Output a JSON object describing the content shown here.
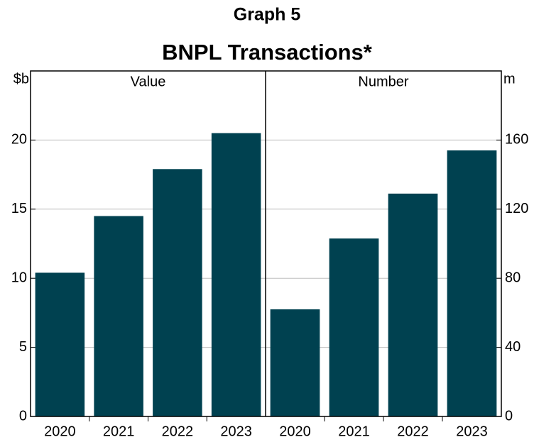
{
  "header": {
    "label": "Graph 5",
    "title": "BNPL Transactions*"
  },
  "chart_data": [
    {
      "type": "bar",
      "title": "Value",
      "unit": "$b",
      "axis_side": "left",
      "categories": [
        "2020",
        "2021",
        "2022",
        "2023"
      ],
      "values": [
        10.4,
        14.5,
        17.9,
        20.5
      ],
      "color": "#004150",
      "ylim": [
        0,
        25
      ],
      "yticks": [
        0,
        5,
        10,
        15,
        20
      ],
      "grid": true
    },
    {
      "type": "bar",
      "title": "Number",
      "unit": "m",
      "axis_side": "right",
      "categories": [
        "2020",
        "2021",
        "2022",
        "2023"
      ],
      "values": [
        62,
        103,
        129,
        154
      ],
      "color": "#004150",
      "ylim": [
        0,
        200
      ],
      "yticks": [
        0,
        40,
        80,
        120,
        160
      ],
      "grid": true
    }
  ]
}
